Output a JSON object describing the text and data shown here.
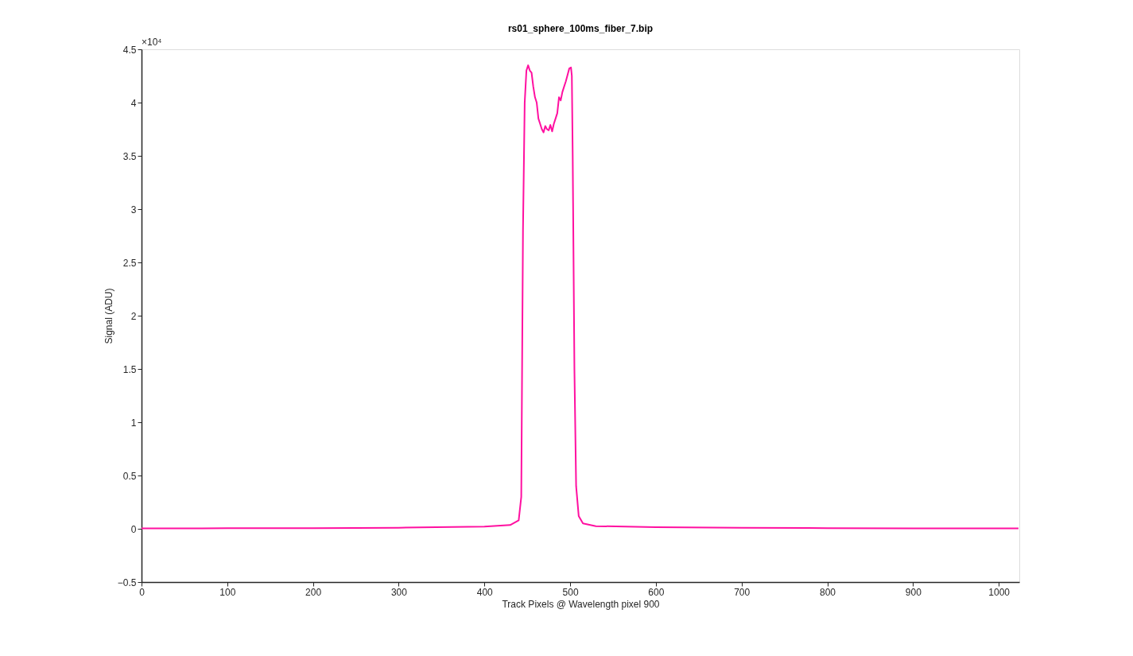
{
  "chart_data": {
    "type": "line",
    "title": "rs01_sphere_100ms_fiber_7.bip",
    "xlabel": "Track Pixels @ Wavelength pixel 900",
    "ylabel": "Signal (ADU)",
    "annotations": [
      "×10⁴"
    ],
    "x": [
      0,
      100,
      200,
      300,
      400,
      430,
      440,
      443,
      445,
      447,
      449,
      451,
      453,
      455,
      457,
      459,
      461,
      463,
      465,
      467,
      469,
      471,
      473,
      475,
      477,
      479,
      481,
      483,
      485,
      487,
      489,
      491,
      493,
      495,
      497,
      499,
      501,
      502,
      503,
      505,
      507,
      510,
      515,
      530,
      600,
      700,
      800,
      900,
      1000,
      1023
    ],
    "series": [
      {
        "color": "#ff10a0",
        "values": [
          0.003,
          0.005,
          0.006,
          0.01,
          0.02,
          0.035,
          0.08,
          0.3,
          2.8,
          4.0,
          4.3,
          4.35,
          4.3,
          4.28,
          4.15,
          4.05,
          4.0,
          3.85,
          3.8,
          3.75,
          3.72,
          3.78,
          3.75,
          3.74,
          3.79,
          3.73,
          3.8,
          3.85,
          3.9,
          4.05,
          4.02,
          4.1,
          4.15,
          4.2,
          4.26,
          4.32,
          4.33,
          4.25,
          3.5,
          1.5,
          0.4,
          0.12,
          0.05,
          0.025,
          0.015,
          0.01,
          0.006,
          0.004,
          0.003,
          0.003
        ]
      }
    ],
    "xlim": [
      0,
      1024
    ],
    "xticks": [
      0,
      100,
      200,
      300,
      400,
      500,
      600,
      700,
      800,
      900,
      1000
    ],
    "ylim": [
      -0.5,
      4.5
    ],
    "yticks": [
      -0.5,
      0,
      0.5,
      1,
      1.5,
      2,
      2.5,
      3,
      3.5,
      4,
      4.5
    ],
    "grid": false,
    "marker": "none",
    "line_style": "solid"
  }
}
